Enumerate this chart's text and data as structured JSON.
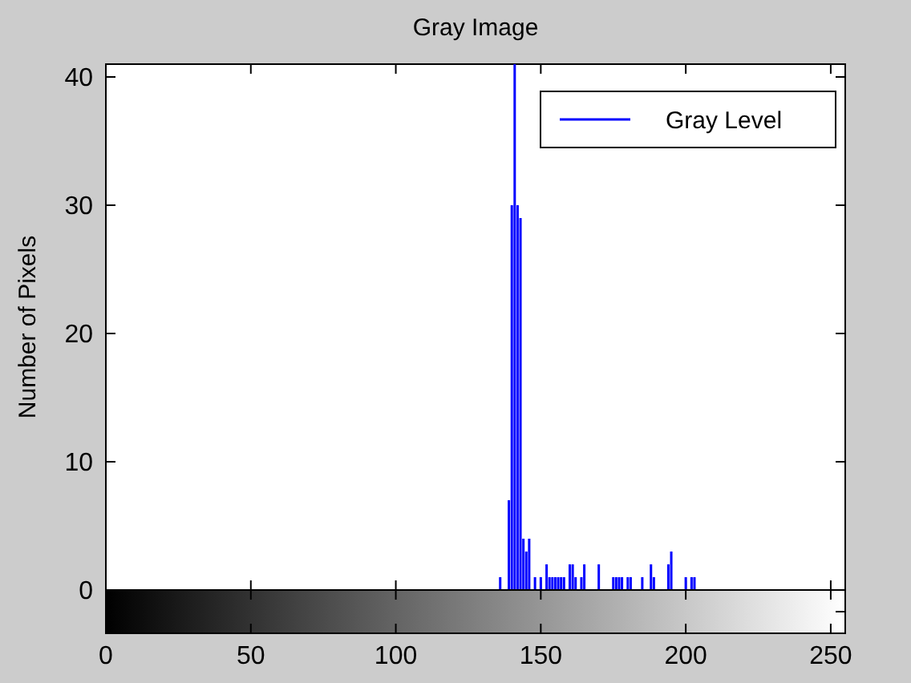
{
  "chart_data": {
    "type": "bar",
    "title": "Gray Image",
    "ylabel": "Number of Pixels",
    "x": [
      136,
      139,
      140,
      141,
      142,
      143,
      144,
      145,
      146,
      148,
      150,
      152,
      153,
      154,
      155,
      156,
      157,
      158,
      160,
      161,
      162,
      164,
      165,
      170,
      175,
      176,
      177,
      178,
      180,
      181,
      185,
      188,
      189,
      194,
      195,
      200,
      202,
      203
    ],
    "series": [
      {
        "name": "Gray Level",
        "color": "#0000ff",
        "values": [
          1,
          7,
          30,
          41,
          30,
          29,
          4,
          3,
          4,
          1,
          1,
          2,
          1,
          1,
          1,
          1,
          1,
          1,
          2,
          2,
          1,
          1,
          2,
          2,
          1,
          1,
          1,
          1,
          1,
          1,
          1,
          2,
          1,
          2,
          3,
          1,
          1,
          1
        ]
      }
    ],
    "xlim": [
      0,
      255
    ],
    "xticks": [
      0,
      50,
      100,
      150,
      200,
      250
    ],
    "ylim": [
      0,
      41
    ],
    "yticks": [
      0,
      10,
      20,
      30,
      40
    ],
    "grid": false,
    "legend": "top right"
  }
}
